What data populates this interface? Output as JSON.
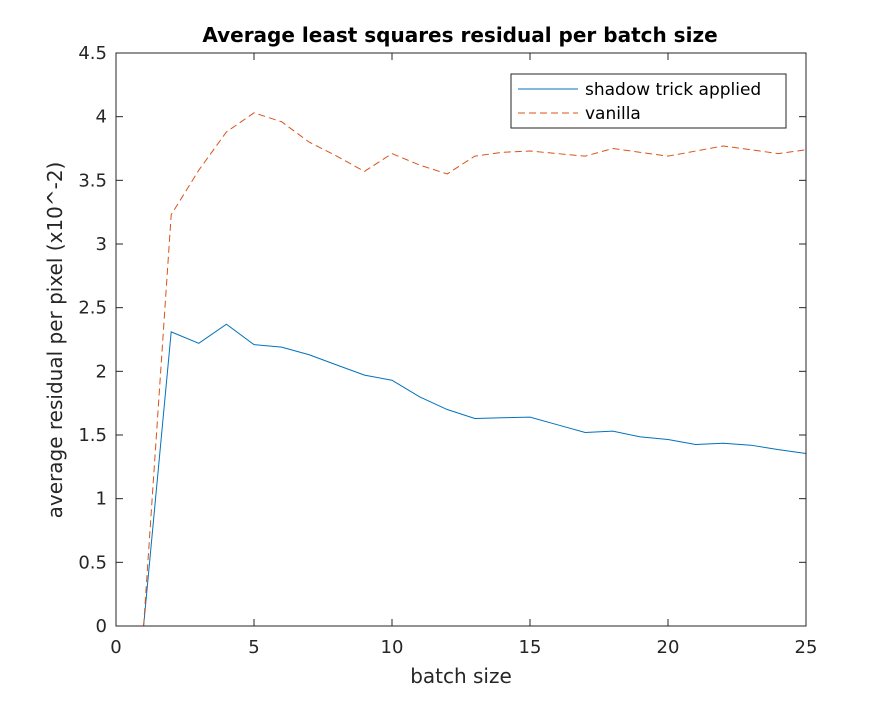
{
  "chart_data": {
    "type": "line",
    "title": "Average least squares residual per batch size",
    "xlabel": "batch size",
    "ylabel": "average residual per pixel (x10^-2)",
    "xlim": [
      0,
      25
    ],
    "ylim": [
      0,
      4.5
    ],
    "xticks": [
      0,
      5,
      10,
      15,
      20,
      25
    ],
    "yticks": [
      0,
      0.5,
      1,
      1.5,
      2,
      2.5,
      3,
      3.5,
      4,
      4.5
    ],
    "grid": false,
    "legend_position": "top-right",
    "x": [
      1,
      2,
      3,
      4,
      5,
      6,
      7,
      8,
      9,
      10,
      11,
      12,
      13,
      14,
      15,
      16,
      17,
      18,
      19,
      20,
      21,
      22,
      23,
      24,
      25
    ],
    "series": [
      {
        "name": "shadow trick applied",
        "color": "#0072BD",
        "style": "solid",
        "values": [
          0,
          2.31,
          2.22,
          2.37,
          2.21,
          2.19,
          2.13,
          2.05,
          1.97,
          1.93,
          1.8,
          1.7,
          1.63,
          1.635,
          1.64,
          1.58,
          1.52,
          1.53,
          1.485,
          1.465,
          1.425,
          1.435,
          1.42,
          1.385,
          1.355
        ]
      },
      {
        "name": "vanilla",
        "color": "#D95319",
        "style": "dashed",
        "values": [
          0,
          3.23,
          3.58,
          3.88,
          4.03,
          3.96,
          3.8,
          3.69,
          3.57,
          3.71,
          3.62,
          3.55,
          3.69,
          3.72,
          3.73,
          3.71,
          3.69,
          3.75,
          3.72,
          3.69,
          3.73,
          3.77,
          3.74,
          3.71,
          3.74
        ]
      }
    ]
  }
}
